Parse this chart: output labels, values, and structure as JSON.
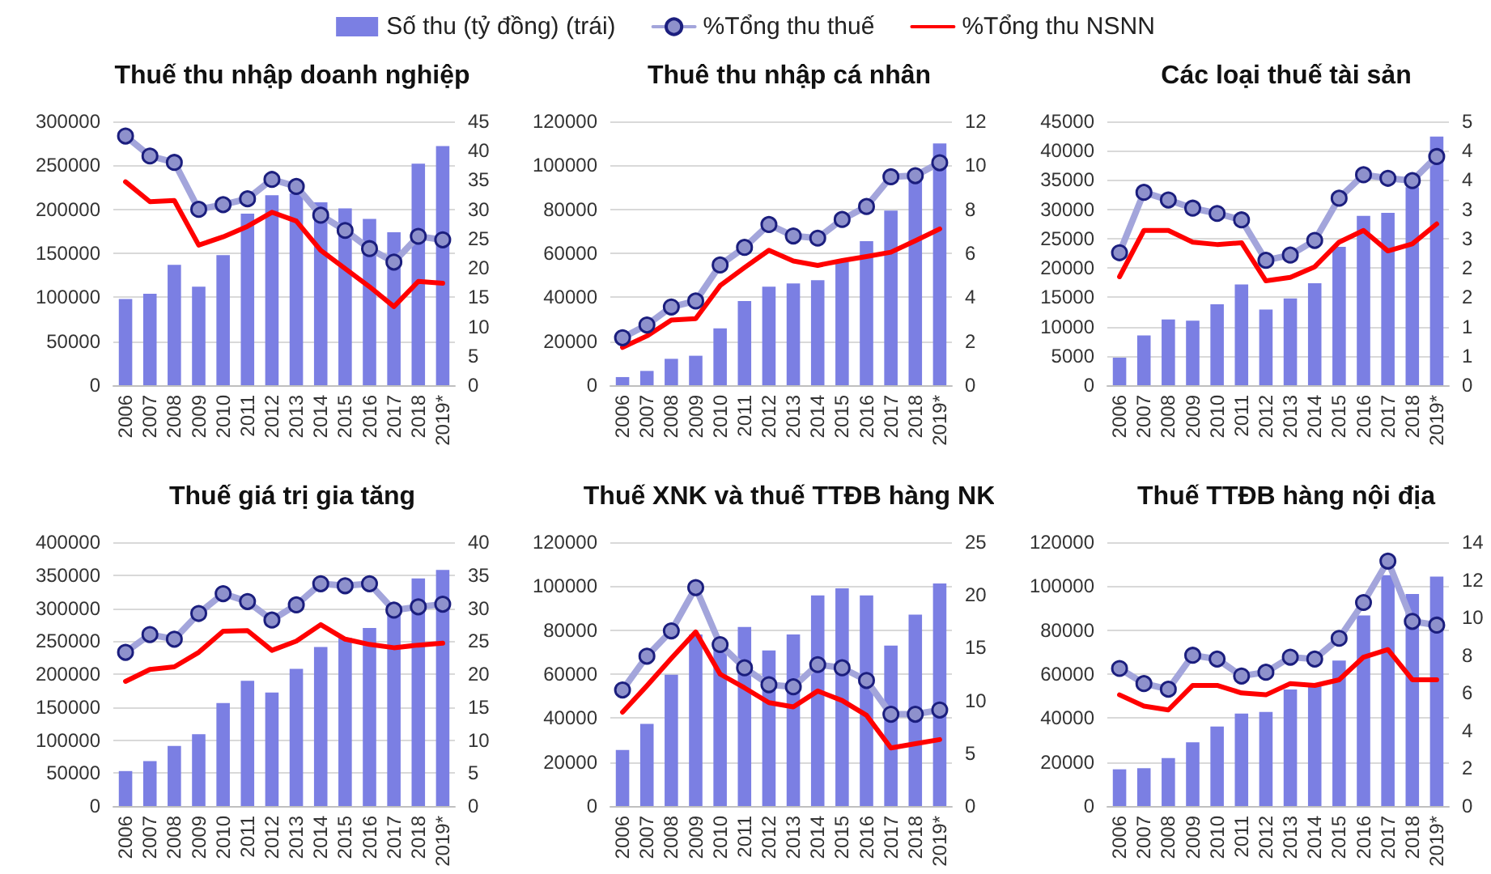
{
  "chart_data": [
    {
      "type": "bar",
      "title": "Thuế thu nhập doanh nghiệp",
      "legend": "top",
      "grid": "y",
      "categories": [
        "2006",
        "2007",
        "2008",
        "2009",
        "2010",
        "2011",
        "2012",
        "2013",
        "2014",
        "2015",
        "2016",
        "2017",
        "2018",
        "2019*"
      ],
      "series": [
        {
          "name": "Số thu (tỷ đồng) (trái)",
          "type": "bar",
          "color": "#7b7fe3",
          "values": [
            98000,
            104000,
            137000,
            112000,
            148000,
            195000,
            216000,
            218000,
            208000,
            201000,
            189000,
            174000,
            252000,
            272000
          ]
        },
        {
          "name": "%Tổng thu thuế",
          "type": "line",
          "axis": "y2",
          "marker": "circle",
          "color": "#a3a5db",
          "values": [
            42.5,
            39.1,
            38.0,
            30.0,
            30.8,
            31.8,
            35.1,
            33.9,
            29.0,
            26.4,
            23.3,
            21.0,
            25.4,
            24.8
          ]
        },
        {
          "name": "%Tổng thu NSNN",
          "type": "line",
          "axis": "y2",
          "marker": "none",
          "color": "#ff0000",
          "values": [
            34.7,
            31.3,
            31.5,
            23.9,
            25.3,
            27.1,
            29.5,
            28.0,
            23.0,
            19.9,
            16.8,
            13.4,
            17.7,
            17.4
          ]
        }
      ],
      "ylim": [
        0,
        300000
      ],
      "yticks": [
        0,
        50000,
        100000,
        150000,
        200000,
        250000,
        300000
      ],
      "y2lim": [
        0,
        45
      ],
      "y2ticks": [
        0,
        5,
        10,
        15,
        20,
        25,
        30,
        35,
        40,
        45
      ]
    },
    {
      "type": "bar",
      "title": "Thuê thu nhập cá nhân",
      "grid": "y",
      "categories": [
        "2006",
        "2007",
        "2008",
        "2009",
        "2010",
        "2011",
        "2012",
        "2013",
        "2014",
        "2015",
        "2016",
        "2017",
        "2018",
        "2019*"
      ],
      "series": [
        {
          "type": "bar",
          "color": "#7b7fe3",
          "values": [
            3700,
            6500,
            12000,
            13400,
            25900,
            38300,
            44800,
            46300,
            47800,
            56000,
            65500,
            79400,
            94000,
            110000
          ]
        },
        {
          "type": "line",
          "axis": "y2",
          "marker": "circle",
          "color": "#a3a5db",
          "values": [
            2.16,
            2.74,
            3.56,
            3.83,
            5.47,
            6.27,
            7.31,
            6.79,
            6.69,
            7.54,
            8.13,
            9.48,
            9.53,
            10.12
          ]
        },
        {
          "type": "line",
          "axis": "y2",
          "marker": "none",
          "color": "#ff0000",
          "values": [
            1.72,
            2.24,
            2.96,
            3.03,
            4.53,
            5.35,
            6.14,
            5.65,
            5.45,
            5.67,
            5.85,
            6.05,
            6.57,
            7.11
          ]
        }
      ],
      "ylim": [
        0,
        120000
      ],
      "yticks": [
        0,
        20000,
        40000,
        60000,
        80000,
        100000,
        120000
      ],
      "y2lim": [
        0,
        12
      ],
      "y2ticks": [
        0,
        2,
        4,
        6,
        8,
        10,
        12
      ]
    },
    {
      "type": "bar",
      "title": "Các loại thuế tài sản",
      "grid": "y",
      "categories": [
        "2006",
        "2007",
        "2008",
        "2009",
        "2010",
        "2011",
        "2012",
        "2013",
        "2014",
        "2015",
        "2016",
        "2017",
        "2018",
        "2019*"
      ],
      "series": [
        {
          "type": "bar",
          "color": "#7b7fe3",
          "values": [
            4700,
            8500,
            11200,
            11000,
            13800,
            17200,
            12900,
            14800,
            17400,
            23600,
            28900,
            29400,
            33800,
            42400
          ]
        },
        {
          "type": "line",
          "axis": "y2",
          "marker": "circle",
          "color": "#a3a5db",
          "values": [
            2.26,
            3.29,
            3.16,
            3.02,
            2.93,
            2.82,
            2.13,
            2.22,
            2.47,
            3.19,
            3.59,
            3.53,
            3.49,
            3.9
          ]
        },
        {
          "type": "line",
          "axis": "y2",
          "marker": "none",
          "color": "#ff0000",
          "values": [
            1.85,
            2.64,
            2.64,
            2.44,
            2.4,
            2.43,
            1.78,
            1.84,
            2.02,
            2.44,
            2.64,
            2.29,
            2.41,
            2.75
          ]
        }
      ],
      "ylim": [
        0,
        45000
      ],
      "yticks": [
        0,
        5000,
        10000,
        15000,
        20000,
        25000,
        30000,
        35000,
        40000,
        45000
      ],
      "y2lim": [
        0,
        4.5
      ],
      "y2ticks": [
        0,
        {
          "value": 0.5,
          "label": "1"
        },
        1,
        {
          "value": 1.5,
          "label": "2"
        },
        2,
        {
          "value": 2.5,
          "label": "3"
        },
        3,
        {
          "value": 3.5,
          "label": "4"
        },
        4,
        {
          "value": 4.5,
          "label": "5"
        }
      ]
    },
    {
      "type": "bar",
      "title": "Thuế giá trị gia tăng",
      "grid": "y",
      "categories": [
        "2006",
        "2007",
        "2008",
        "2009",
        "2010",
        "2011",
        "2012",
        "2013",
        "2014",
        "2015",
        "2016",
        "2017",
        "2018",
        "2019*"
      ],
      "series": [
        {
          "type": "bar",
          "color": "#7b7fe3",
          "values": [
            53000,
            68000,
            91000,
            109000,
            156000,
            190000,
            172000,
            208000,
            241000,
            255000,
            270000,
            290000,
            345000,
            358000
          ]
        },
        {
          "type": "line",
          "axis": "y2",
          "marker": "circle",
          "color": "#a3a5db",
          "values": [
            23.3,
            26.0,
            25.3,
            29.2,
            32.2,
            31.0,
            28.2,
            30.5,
            33.7,
            33.4,
            33.7,
            29.7,
            30.2,
            30.6
          ]
        },
        {
          "type": "line",
          "axis": "y2",
          "marker": "none",
          "color": "#ff0000",
          "values": [
            18.9,
            20.7,
            21.1,
            23.3,
            26.5,
            26.6,
            23.6,
            25.0,
            27.5,
            25.3,
            24.5,
            24.0,
            24.4,
            24.7
          ]
        }
      ],
      "ylim": [
        0,
        400000
      ],
      "yticks": [
        0,
        50000,
        100000,
        150000,
        200000,
        250000,
        300000,
        350000,
        400000
      ],
      "y2lim": [
        0,
        40
      ],
      "y2ticks": [
        0,
        5,
        10,
        15,
        20,
        25,
        30,
        35,
        40
      ]
    },
    {
      "type": "bar",
      "title": "Thuế XNK và thuế TTĐB hàng NK",
      "grid": "y",
      "categories": [
        "2006",
        "2007",
        "2008",
        "2009",
        "2010",
        "2011",
        "2012",
        "2013",
        "2014",
        "2015",
        "2016",
        "2017",
        "2018",
        "2019*"
      ],
      "series": [
        {
          "type": "bar",
          "color": "#7b7fe3",
          "values": [
            25500,
            37400,
            59700,
            78000,
            71000,
            81400,
            70800,
            78000,
            95800,
            99000,
            95800,
            73000,
            87100,
            101200
          ]
        },
        {
          "type": "line",
          "axis": "y2",
          "marker": "circle",
          "color": "#a3a5db",
          "values": [
            11.0,
            14.2,
            16.6,
            20.7,
            15.3,
            13.1,
            11.5,
            11.3,
            13.4,
            13.1,
            11.9,
            8.7,
            8.7,
            9.1
          ]
        },
        {
          "type": "line",
          "axis": "y2",
          "marker": "none",
          "color": "#ff0000",
          "values": [
            8.9,
            11.4,
            14.0,
            16.5,
            12.5,
            11.2,
            9.8,
            9.4,
            10.9,
            10.0,
            8.6,
            5.5,
            5.9,
            6.3
          ]
        }
      ],
      "ylim": [
        0,
        120000
      ],
      "yticks": [
        0,
        20000,
        40000,
        60000,
        80000,
        100000,
        120000
      ],
      "y2lim": [
        0,
        25
      ],
      "y2ticks": [
        0,
        5,
        10,
        15,
        20,
        25
      ]
    },
    {
      "type": "bar",
      "title": "Thuế TTĐB hàng nội địa",
      "grid": "y",
      "categories": [
        "2006",
        "2007",
        "2008",
        "2009",
        "2010",
        "2011",
        "2012",
        "2013",
        "2014",
        "2015",
        "2016",
        "2017",
        "2018",
        "2019*"
      ],
      "series": [
        {
          "type": "bar",
          "color": "#7b7fe3",
          "values": [
            16700,
            17200,
            21800,
            29000,
            36200,
            42100,
            42800,
            53000,
            55000,
            66200,
            86700,
            105000,
            96400,
            104400
          ]
        },
        {
          "type": "line",
          "axis": "y2",
          "marker": "circle",
          "color": "#a3a5db",
          "values": [
            7.3,
            6.5,
            6.2,
            8.0,
            7.8,
            6.9,
            7.1,
            7.9,
            7.8,
            8.9,
            10.8,
            13.0,
            9.8,
            9.6
          ]
        },
        {
          "type": "line",
          "axis": "y2",
          "marker": "none",
          "color": "#ff0000",
          "values": [
            5.9,
            5.3,
            5.1,
            6.4,
            6.4,
            6.0,
            5.9,
            6.5,
            6.4,
            6.7,
            7.9,
            8.3,
            6.7,
            6.7
          ]
        }
      ],
      "ylim": [
        0,
        120000
      ],
      "yticks": [
        0,
        20000,
        40000,
        60000,
        80000,
        100000,
        120000
      ],
      "y2lim": [
        0,
        14
      ],
      "y2ticks": [
        0,
        2,
        4,
        6,
        8,
        10,
        12,
        14
      ]
    }
  ]
}
